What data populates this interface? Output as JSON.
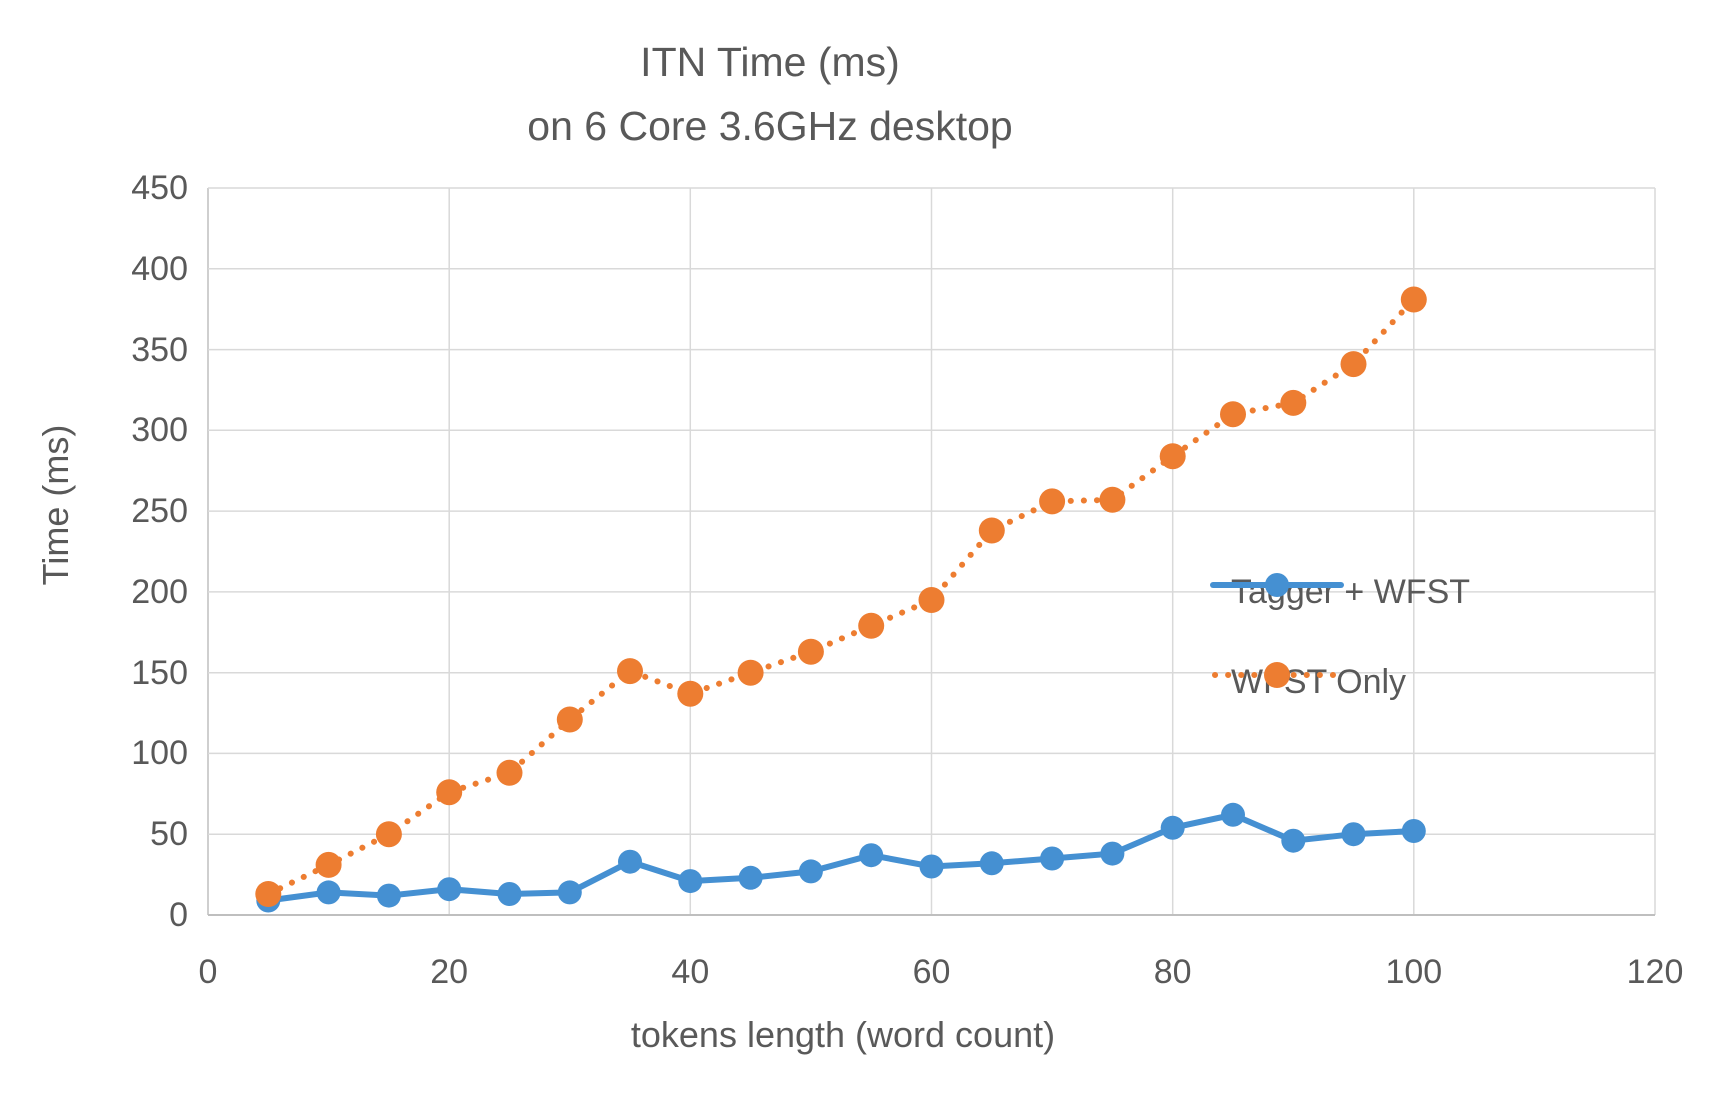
{
  "title": {
    "line1": "ITN Time (ms)",
    "line2": "on 6 Core 3.6GHz desktop"
  },
  "axes": {
    "x": {
      "label": "tokens length (word count)",
      "min": 0,
      "max": 120,
      "tick_step": 20,
      "ticks": [
        0,
        20,
        40,
        60,
        80,
        100,
        120
      ]
    },
    "y": {
      "label": "Time (ms)",
      "min": 0,
      "max": 450,
      "tick_step": 50,
      "ticks": [
        0,
        50,
        100,
        150,
        200,
        250,
        300,
        350,
        400,
        450
      ]
    }
  },
  "legend": [
    {
      "name": "Tagger + WFST",
      "color": "#4590D2",
      "style": "solid"
    },
    {
      "name": "WFST Only",
      "color": "#ED7D31",
      "style": "dotted"
    }
  ],
  "colors": {
    "blue_series": "#4590D2",
    "orange_series": "#ED7D31",
    "gridline": "#D9D9D9",
    "axis_line": "#BFBFBF",
    "text": "#595959",
    "background": "#FFFFFF"
  },
  "chart_data": {
    "type": "line",
    "title": "ITN Time (ms) on 6 Core 3.6GHz desktop",
    "xlabel": "tokens length (word count)",
    "ylabel": "Time (ms)",
    "xlim": [
      0,
      120
    ],
    "ylim": [
      0,
      450
    ],
    "grid": true,
    "legend_position": "right-inside",
    "x": [
      5,
      10,
      15,
      20,
      25,
      30,
      35,
      40,
      45,
      50,
      55,
      60,
      65,
      70,
      75,
      80,
      85,
      90,
      95,
      100
    ],
    "series": [
      {
        "name": "Tagger + WFST",
        "style": "solid",
        "color": "#4590D2",
        "values": [
          9,
          14,
          12,
          16,
          13,
          14,
          33,
          21,
          23,
          27,
          37,
          30,
          32,
          35,
          38,
          54,
          62,
          46,
          50,
          52
        ]
      },
      {
        "name": "WFST Only",
        "style": "dotted",
        "color": "#ED7D31",
        "values": [
          13,
          31,
          50,
          76,
          88,
          121,
          151,
          137,
          150,
          163,
          179,
          195,
          238,
          256,
          257,
          284,
          310,
          317,
          341,
          381
        ]
      }
    ]
  }
}
